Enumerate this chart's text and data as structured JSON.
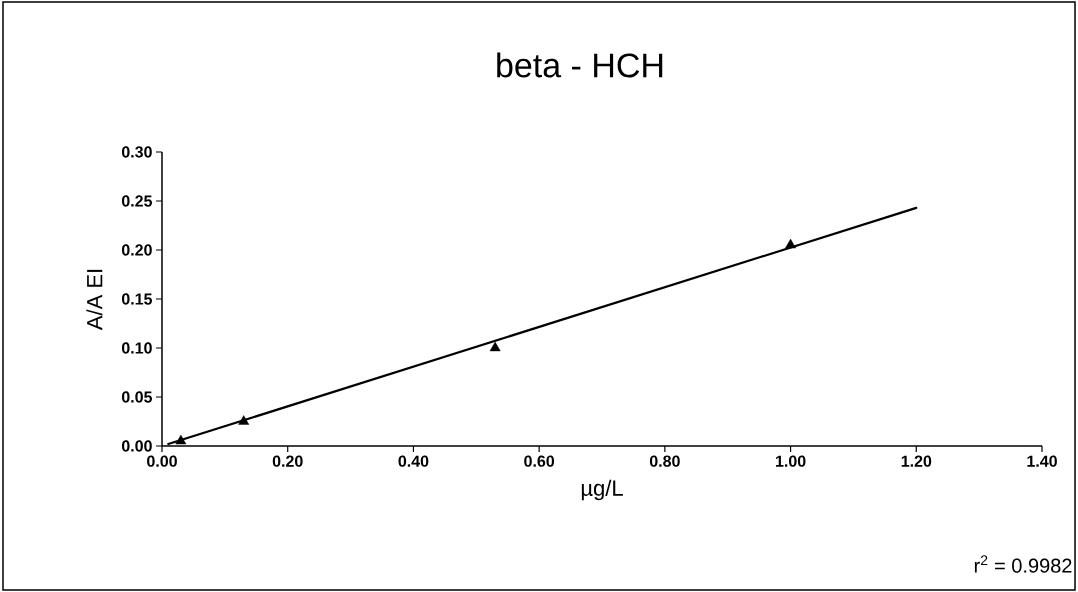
{
  "chart_data": {
    "type": "scatter",
    "title": "beta - HCH",
    "xlabel": "µg/L",
    "ylabel": "A/A EI",
    "xlim": [
      0,
      1.4
    ],
    "ylim": [
      0,
      0.3
    ],
    "xticks": [
      {
        "value": 0,
        "label": "0.00"
      },
      {
        "value": 0.2,
        "label": "0.20"
      },
      {
        "value": 0.4,
        "label": "0.40"
      },
      {
        "value": 0.6,
        "label": "0.60"
      },
      {
        "value": 0.8,
        "label": "0.80"
      },
      {
        "value": 1.0,
        "label": "1.00"
      },
      {
        "value": 1.2,
        "label": "1.20"
      },
      {
        "value": 1.4,
        "label": "1.40"
      }
    ],
    "yticks": [
      {
        "value": 0,
        "label": "0.00"
      },
      {
        "value": 0.05,
        "label": "0.05"
      },
      {
        "value": 0.1,
        "label": "0.10"
      },
      {
        "value": 0.15,
        "label": "0.15"
      },
      {
        "value": 0.2,
        "label": "0.20"
      },
      {
        "value": 0.25,
        "label": "0.25"
      },
      {
        "value": 0.3,
        "label": "0.30"
      }
    ],
    "series": [
      {
        "color": "#000000",
        "marker": "triangle",
        "x": [
          0.03,
          0.13,
          0.53,
          1.0
        ],
        "values": [
          0.005,
          0.025,
          0.1,
          0.205
        ]
      },
      {
        "type": "line",
        "color": "#000000",
        "marker": "none",
        "line_style": "solid",
        "x": [
          0.01,
          1.2
        ],
        "values": [
          0.002,
          0.243
        ]
      }
    ],
    "annotations": [
      "r$^{2}$ = 0.9982"
    ]
  }
}
